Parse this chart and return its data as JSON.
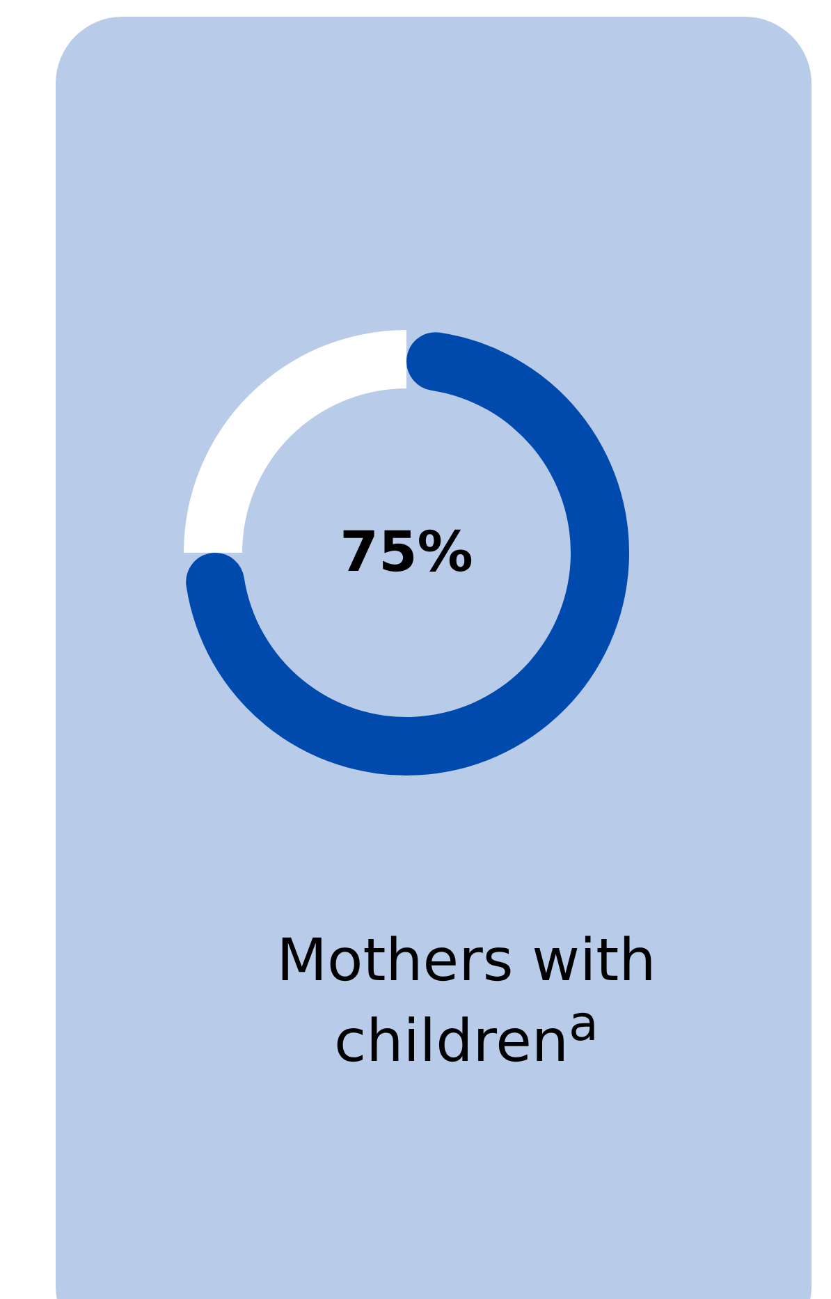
{
  "chart_data": {
    "type": "donut",
    "title": "Mothers with children$^{a}$",
    "categories": [
      null,
      null
    ],
    "values": [
      75,
      25
    ],
    "colors": [
      "#004aad",
      "#ffffff"
    ],
    "value_labels": [
      "75%",
      null
    ]
  }
}
